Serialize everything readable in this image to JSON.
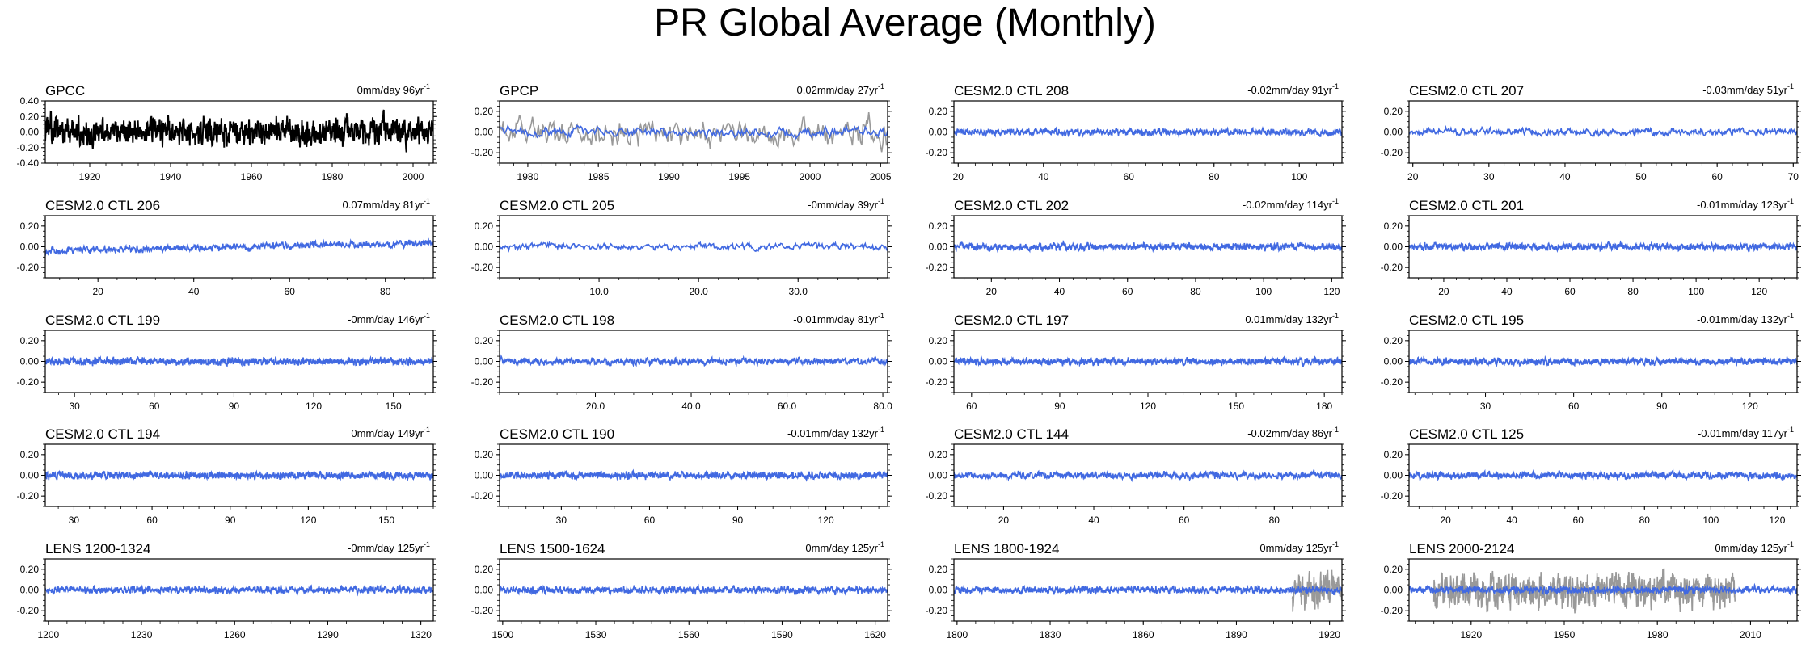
{
  "title": "PR Global Average (Monthly)",
  "colors": {
    "model": "#4169e1",
    "obs": "#000000",
    "overlay": "#999999",
    "frame": "#000000"
  },
  "chart_data": [
    {
      "type": "line",
      "title": "GPCC",
      "trend": "0mm/day 96yr",
      "trend_unit_sup": "-1",
      "xlim": [
        1909,
        2005
      ],
      "xticks": [
        "1920",
        "1940",
        "1960",
        "1980",
        "2000"
      ],
      "xtick_values": [
        1920,
        1940,
        1960,
        1980,
        2000
      ],
      "ylim": [
        -0.4,
        0.4
      ],
      "yticks": [
        "0.40",
        "0.20",
        "0.00",
        "-0.20",
        "-0.40"
      ],
      "ytick_values": [
        0.4,
        0.2,
        0,
        -0.2,
        -0.4
      ],
      "series": [
        {
          "name": "GPCC",
          "role": "obs",
          "amplitude": 0.12,
          "seed": 11
        }
      ]
    },
    {
      "type": "line",
      "title": "GPCP",
      "trend": "0.02mm/day 27yr",
      "trend_unit_sup": "-1",
      "xlim": [
        1978,
        2005.5
      ],
      "xticks": [
        "1980",
        "1985",
        "1990",
        "1995",
        "2000",
        "2005"
      ],
      "xtick_values": [
        1980,
        1985,
        1990,
        1995,
        2000,
        2005
      ],
      "ylim": [
        -0.3,
        0.3
      ],
      "yticks": [
        "0.20",
        "0.00",
        "-0.20"
      ],
      "ytick_values": [
        0.2,
        0,
        -0.2
      ],
      "series": [
        {
          "name": "overlay",
          "role": "overlay",
          "amplitude": 0.09,
          "seed": 21
        },
        {
          "name": "GPCP",
          "role": "model",
          "amplitude": 0.035,
          "seed": 22
        }
      ]
    },
    {
      "type": "line",
      "title": "CESM2.0 CTL 208",
      "trend": "-0.02mm/day 91yr",
      "trend_unit_sup": "-1",
      "xlim": [
        19,
        110
      ],
      "xticks": [
        "20",
        "40",
        "60",
        "80",
        "100"
      ],
      "xtick_values": [
        20,
        40,
        60,
        80,
        100
      ],
      "ylim": [
        -0.3,
        0.3
      ],
      "yticks": [
        "0.20",
        "0.00",
        "-0.20"
      ],
      "ytick_values": [
        0.2,
        0,
        -0.2
      ],
      "series": [
        {
          "name": "CESM2.0 CTL 208",
          "role": "model",
          "amplitude": 0.022,
          "seed": 31
        }
      ]
    },
    {
      "type": "line",
      "title": "CESM2.0 CTL 207",
      "trend": "-0.03mm/day 51yr",
      "trend_unit_sup": "-1",
      "xlim": [
        19.5,
        70.5
      ],
      "xticks": [
        "20",
        "30",
        "40",
        "50",
        "60",
        "70"
      ],
      "xtick_values": [
        20,
        30,
        40,
        50,
        60,
        70
      ],
      "ylim": [
        -0.3,
        0.3
      ],
      "yticks": [
        "0.20",
        "0.00",
        "-0.20"
      ],
      "ytick_values": [
        0.2,
        0,
        -0.2
      ],
      "series": [
        {
          "name": "CESM2.0 CTL 207",
          "role": "model",
          "amplitude": 0.022,
          "seed": 41
        }
      ]
    },
    {
      "type": "line",
      "title": "CESM2.0 CTL 206",
      "trend": "0.07mm/day 81yr",
      "trend_unit_sup": "-1",
      "xlim": [
        9,
        90
      ],
      "xticks": [
        "20",
        "40",
        "60",
        "80"
      ],
      "xtick_values": [
        20,
        40,
        60,
        80
      ],
      "ylim": [
        -0.3,
        0.3
      ],
      "yticks": [
        "0.20",
        "0.00",
        "-0.20"
      ],
      "ytick_values": [
        0.2,
        0,
        -0.2
      ],
      "series": [
        {
          "name": "CESM2.0 CTL 206",
          "role": "model",
          "amplitude": 0.022,
          "seed": 51,
          "trend_slope": 0.07
        }
      ]
    },
    {
      "type": "line",
      "title": "CESM2.0 CTL 205",
      "trend": "-0mm/day 39yr",
      "trend_unit_sup": "-1",
      "xlim": [
        0,
        39
      ],
      "xticks": [
        "10.0",
        "20.0",
        "30.0"
      ],
      "xtick_values": [
        10,
        20,
        30
      ],
      "ylim": [
        -0.3,
        0.3
      ],
      "yticks": [
        "0.20",
        "0.00",
        "-0.20"
      ],
      "ytick_values": [
        0.2,
        0,
        -0.2
      ],
      "series": [
        {
          "name": "CESM2.0 CTL 205",
          "role": "model",
          "amplitude": 0.022,
          "seed": 61
        }
      ]
    },
    {
      "type": "line",
      "title": "CESM2.0 CTL 202",
      "trend": "-0.02mm/day 114yr",
      "trend_unit_sup": "-1",
      "xlim": [
        9,
        123
      ],
      "xticks": [
        "20",
        "40",
        "60",
        "80",
        "100",
        "120"
      ],
      "xtick_values": [
        20,
        40,
        60,
        80,
        100,
        120
      ],
      "ylim": [
        -0.3,
        0.3
      ],
      "yticks": [
        "0.20",
        "0.00",
        "-0.20"
      ],
      "ytick_values": [
        0.2,
        0,
        -0.2
      ],
      "series": [
        {
          "name": "CESM2.0 CTL 202",
          "role": "model",
          "amplitude": 0.022,
          "seed": 71
        }
      ]
    },
    {
      "type": "line",
      "title": "CESM2.0 CTL 201",
      "trend": "-0.01mm/day 123yr",
      "trend_unit_sup": "-1",
      "xlim": [
        9,
        132
      ],
      "xticks": [
        "20",
        "40",
        "60",
        "80",
        "100",
        "120"
      ],
      "xtick_values": [
        20,
        40,
        60,
        80,
        100,
        120
      ],
      "ylim": [
        -0.3,
        0.3
      ],
      "yticks": [
        "0.20",
        "0.00",
        "-0.20"
      ],
      "ytick_values": [
        0.2,
        0,
        -0.2
      ],
      "series": [
        {
          "name": "CESM2.0 CTL 201",
          "role": "model",
          "amplitude": 0.022,
          "seed": 81
        }
      ]
    },
    {
      "type": "line",
      "title": "CESM2.0 CTL 199",
      "trend": "-0mm/day 146yr",
      "trend_unit_sup": "-1",
      "xlim": [
        19,
        165
      ],
      "xticks": [
        "30",
        "60",
        "90",
        "120",
        "150"
      ],
      "xtick_values": [
        30,
        60,
        90,
        120,
        150
      ],
      "ylim": [
        -0.3,
        0.3
      ],
      "yticks": [
        "0.20",
        "0.00",
        "-0.20"
      ],
      "ytick_values": [
        0.2,
        0,
        -0.2
      ],
      "series": [
        {
          "name": "CESM2.0 CTL 199",
          "role": "model",
          "amplitude": 0.024,
          "seed": 91
        }
      ]
    },
    {
      "type": "line",
      "title": "CESM2.0 CTL 198",
      "trend": "-0.01mm/day 81yr",
      "trend_unit_sup": "-1",
      "xlim": [
        0,
        81
      ],
      "xticks": [
        "20.0",
        "40.0",
        "60.0",
        "80.0"
      ],
      "xtick_values": [
        20,
        40,
        60,
        80
      ],
      "ylim": [
        -0.3,
        0.3
      ],
      "yticks": [
        "0.20",
        "0.00",
        "-0.20"
      ],
      "ytick_values": [
        0.2,
        0,
        -0.2
      ],
      "series": [
        {
          "name": "CESM2.0 CTL 198",
          "role": "model",
          "amplitude": 0.022,
          "seed": 101
        }
      ]
    },
    {
      "type": "line",
      "title": "CESM2.0 CTL 197",
      "trend": "0.01mm/day 132yr",
      "trend_unit_sup": "-1",
      "xlim": [
        54,
        186
      ],
      "xticks": [
        "60",
        "90",
        "120",
        "150",
        "180"
      ],
      "xtick_values": [
        60,
        90,
        120,
        150,
        180
      ],
      "ylim": [
        -0.3,
        0.3
      ],
      "yticks": [
        "0.20",
        "0.00",
        "-0.20"
      ],
      "ytick_values": [
        0.2,
        0,
        -0.2
      ],
      "series": [
        {
          "name": "CESM2.0 CTL 197",
          "role": "model",
          "amplitude": 0.022,
          "seed": 111
        }
      ]
    },
    {
      "type": "line",
      "title": "CESM2.0 CTL 195",
      "trend": "-0.01mm/day 132yr",
      "trend_unit_sup": "-1",
      "xlim": [
        4,
        136
      ],
      "xticks": [
        "30",
        "60",
        "90",
        "120"
      ],
      "xtick_values": [
        30,
        60,
        90,
        120
      ],
      "ylim": [
        -0.3,
        0.3
      ],
      "yticks": [
        "0.20",
        "0.00",
        "-0.20"
      ],
      "ytick_values": [
        0.2,
        0,
        -0.2
      ],
      "series": [
        {
          "name": "CESM2.0 CTL 195",
          "role": "model",
          "amplitude": 0.022,
          "seed": 121
        }
      ]
    },
    {
      "type": "line",
      "title": "CESM2.0 CTL 194",
      "trend": "0mm/day 149yr",
      "trend_unit_sup": "-1",
      "xlim": [
        19,
        168
      ],
      "xticks": [
        "30",
        "60",
        "90",
        "120",
        "150"
      ],
      "xtick_values": [
        30,
        60,
        90,
        120,
        150
      ],
      "ylim": [
        -0.3,
        0.3
      ],
      "yticks": [
        "0.20",
        "0.00",
        "-0.20"
      ],
      "ytick_values": [
        0.2,
        0,
        -0.2
      ],
      "series": [
        {
          "name": "CESM2.0 CTL 194",
          "role": "model",
          "amplitude": 0.022,
          "seed": 131
        }
      ]
    },
    {
      "type": "line",
      "title": "CESM2.0 CTL 190",
      "trend": "-0.01mm/day 132yr",
      "trend_unit_sup": "-1",
      "xlim": [
        9,
        141
      ],
      "xticks": [
        "30",
        "60",
        "90",
        "120"
      ],
      "xtick_values": [
        30,
        60,
        90,
        120
      ],
      "ylim": [
        -0.3,
        0.3
      ],
      "yticks": [
        "0.20",
        "0.00",
        "-0.20"
      ],
      "ytick_values": [
        0.2,
        0,
        -0.2
      ],
      "series": [
        {
          "name": "CESM2.0 CTL 190",
          "role": "model",
          "amplitude": 0.022,
          "seed": 141
        }
      ]
    },
    {
      "type": "line",
      "title": "CESM2.0 CTL 144",
      "trend": "-0.02mm/day 86yr",
      "trend_unit_sup": "-1",
      "xlim": [
        9,
        95
      ],
      "xticks": [
        "20",
        "40",
        "60",
        "80"
      ],
      "xtick_values": [
        20,
        40,
        60,
        80
      ],
      "ylim": [
        -0.3,
        0.3
      ],
      "yticks": [
        "0.20",
        "0.00",
        "-0.20"
      ],
      "ytick_values": [
        0.2,
        0,
        -0.2
      ],
      "series": [
        {
          "name": "CESM2.0 CTL 144",
          "role": "model",
          "amplitude": 0.022,
          "seed": 151
        }
      ]
    },
    {
      "type": "line",
      "title": "CESM2.0 CTL 125",
      "trend": "-0.01mm/day 117yr",
      "trend_unit_sup": "-1",
      "xlim": [
        9,
        126
      ],
      "xticks": [
        "20",
        "40",
        "60",
        "80",
        "100",
        "120"
      ],
      "xtick_values": [
        20,
        40,
        60,
        80,
        100,
        120
      ],
      "ylim": [
        -0.3,
        0.3
      ],
      "yticks": [
        "0.20",
        "0.00",
        "-0.20"
      ],
      "ytick_values": [
        0.2,
        0,
        -0.2
      ],
      "series": [
        {
          "name": "CESM2.0 CTL 125",
          "role": "model",
          "amplitude": 0.022,
          "seed": 161
        }
      ]
    },
    {
      "type": "line",
      "title": "LENS 1200-1324",
      "trend": "-0mm/day 125yr",
      "trend_unit_sup": "-1",
      "xlim": [
        1199,
        1324
      ],
      "xticks": [
        "1200",
        "1230",
        "1260",
        "1290",
        "1320"
      ],
      "xtick_values": [
        1200,
        1230,
        1260,
        1290,
        1320
      ],
      "ylim": [
        -0.3,
        0.3
      ],
      "yticks": [
        "0.20",
        "0.00",
        "-0.20"
      ],
      "ytick_values": [
        0.2,
        0,
        -0.2
      ],
      "series": [
        {
          "name": "LENS 1200-1324",
          "role": "model",
          "amplitude": 0.022,
          "seed": 171
        }
      ]
    },
    {
      "type": "line",
      "title": "LENS 1500-1624",
      "trend": "0mm/day 125yr",
      "trend_unit_sup": "-1",
      "xlim": [
        1499,
        1624
      ],
      "xticks": [
        "1500",
        "1530",
        "1560",
        "1590",
        "1620"
      ],
      "xtick_values": [
        1500,
        1530,
        1560,
        1590,
        1620
      ],
      "ylim": [
        -0.3,
        0.3
      ],
      "yticks": [
        "0.20",
        "0.00",
        "-0.20"
      ],
      "ytick_values": [
        0.2,
        0,
        -0.2
      ],
      "series": [
        {
          "name": "LENS 1500-1624",
          "role": "model",
          "amplitude": 0.022,
          "seed": 181
        }
      ]
    },
    {
      "type": "line",
      "title": "LENS 1800-1924",
      "trend": "0mm/day 125yr",
      "trend_unit_sup": "-1",
      "xlim": [
        1799,
        1924
      ],
      "xticks": [
        "1800",
        "1830",
        "1860",
        "1890",
        "1920"
      ],
      "xtick_values": [
        1800,
        1830,
        1860,
        1890,
        1920
      ],
      "ylim": [
        -0.3,
        0.3
      ],
      "yticks": [
        "0.20",
        "0.00",
        "-0.20"
      ],
      "ytick_values": [
        0.2,
        0,
        -0.2
      ],
      "series": [
        {
          "name": "overlay",
          "role": "overlay",
          "amplitude": 0.11,
          "seed": 191,
          "x_start": 1908
        },
        {
          "name": "LENS 1800-1924",
          "role": "model",
          "amplitude": 0.022,
          "seed": 192
        }
      ]
    },
    {
      "type": "line",
      "title": "LENS 2000-2124",
      "trend": "0mm/day 125yr",
      "trend_unit_sup": "-1",
      "xlim": [
        1900,
        2025
      ],
      "xticks": [
        "1920",
        "1950",
        "1980",
        "2010"
      ],
      "xtick_values": [
        1920,
        1950,
        1980,
        2010
      ],
      "ylim": [
        -0.3,
        0.3
      ],
      "yticks": [
        "0.20",
        "0.00",
        "-0.20"
      ],
      "ytick_values": [
        0.2,
        0,
        -0.2
      ],
      "series": [
        {
          "name": "overlay",
          "role": "overlay",
          "amplitude": 0.11,
          "seed": 201,
          "x_start": 1908,
          "x_end": 2005
        },
        {
          "name": "LENS 2000-2124",
          "role": "model",
          "amplitude": 0.022,
          "seed": 202
        }
      ]
    }
  ]
}
